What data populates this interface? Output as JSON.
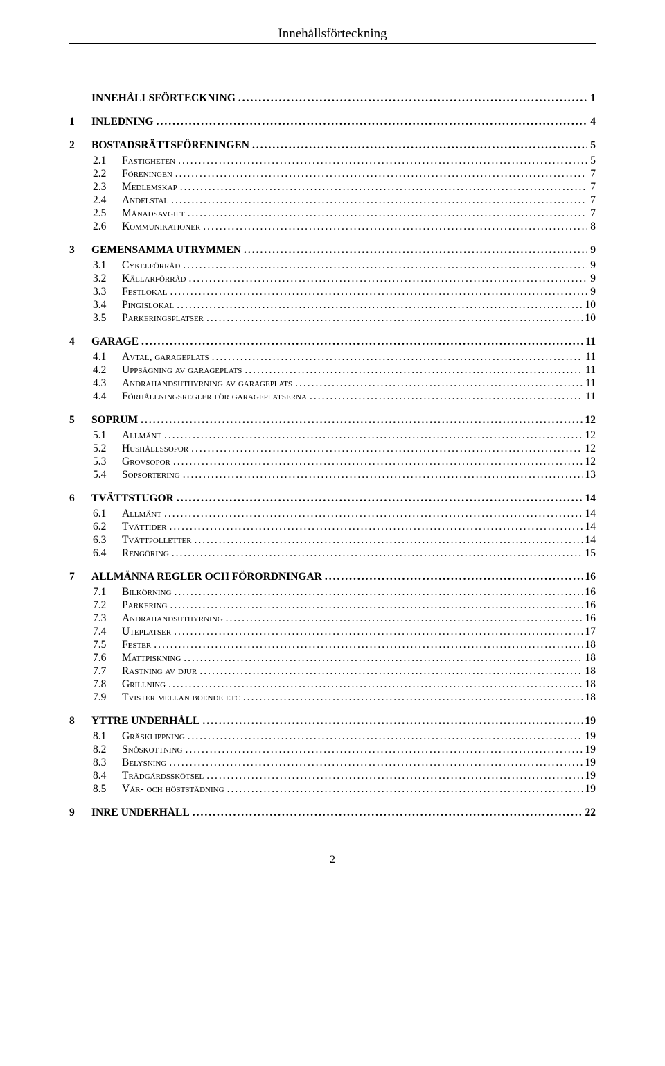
{
  "header": "Innehållsförteckning",
  "page_number": "2",
  "toc": [
    {
      "level": 0,
      "num": "",
      "label": "INNEHÅLLSFÖRTECKNING",
      "page": "1",
      "sc": false
    },
    {
      "level": 0,
      "num": "1",
      "label": "INLEDNING",
      "page": "4",
      "sc": false
    },
    {
      "level": 0,
      "num": "2",
      "label": "BOSTADSRÄTTSFÖRENINGEN",
      "page": "5",
      "sc": false
    },
    {
      "level": 1,
      "num": "2.1",
      "label": "Fastigheten",
      "page": "5",
      "sc": true
    },
    {
      "level": 1,
      "num": "2.2",
      "label": "Föreningen",
      "page": "7",
      "sc": true
    },
    {
      "level": 1,
      "num": "2.3",
      "label": "Medlemskap",
      "page": "7",
      "sc": true
    },
    {
      "level": 1,
      "num": "2.4",
      "label": "Andelstal",
      "page": "7",
      "sc": true
    },
    {
      "level": 1,
      "num": "2.5",
      "label": "Månadsavgift",
      "page": "7",
      "sc": true
    },
    {
      "level": 1,
      "num": "2.6",
      "label": "Kommunikationer",
      "page": "8",
      "sc": true
    },
    {
      "level": 0,
      "num": "3",
      "label": "GEMENSAMMA UTRYMMEN",
      "page": "9",
      "sc": false
    },
    {
      "level": 1,
      "num": "3.1",
      "label": "Cykelförråd",
      "page": "9",
      "sc": true
    },
    {
      "level": 1,
      "num": "3.2",
      "label": "Källarförråd",
      "page": "9",
      "sc": true
    },
    {
      "level": 1,
      "num": "3.3",
      "label": "Festlokal",
      "page": "9",
      "sc": true
    },
    {
      "level": 1,
      "num": "3.4",
      "label": "Pingislokal",
      "page": "10",
      "sc": true
    },
    {
      "level": 1,
      "num": "3.5",
      "label": "Parkeringsplatser",
      "page": "10",
      "sc": true
    },
    {
      "level": 0,
      "num": "4",
      "label": "GARAGE",
      "page": "11",
      "sc": false
    },
    {
      "level": 1,
      "num": "4.1",
      "label": "Avtal, garageplats",
      "page": "11",
      "sc": true
    },
    {
      "level": 1,
      "num": "4.2",
      "label": "Uppsägning av garageplats",
      "page": "11",
      "sc": true
    },
    {
      "level": 1,
      "num": "4.3",
      "label": "Andrahandsuthyrning av garageplats",
      "page": "11",
      "sc": true
    },
    {
      "level": 1,
      "num": "4.4",
      "label": "Förhållningsregler för garageplatserna",
      "page": "11",
      "sc": true
    },
    {
      "level": 0,
      "num": "5",
      "label": "SOPRUM",
      "page": "12",
      "sc": false
    },
    {
      "level": 1,
      "num": "5.1",
      "label": "Allmänt",
      "page": "12",
      "sc": true
    },
    {
      "level": 1,
      "num": "5.2",
      "label": "Hushållssopor",
      "page": "12",
      "sc": true
    },
    {
      "level": 1,
      "num": "5.3",
      "label": "Grovsopor",
      "page": "12",
      "sc": true
    },
    {
      "level": 1,
      "num": "5.4",
      "label": "Sopsortering",
      "page": "13",
      "sc": true
    },
    {
      "level": 0,
      "num": "6",
      "label": "TVÄTTSTUGOR",
      "page": "14",
      "sc": false
    },
    {
      "level": 1,
      "num": "6.1",
      "label": "Allmänt",
      "page": "14",
      "sc": true
    },
    {
      "level": 1,
      "num": "6.2",
      "label": "Tvättider",
      "page": "14",
      "sc": true
    },
    {
      "level": 1,
      "num": "6.3",
      "label": "Tvättpolletter",
      "page": "14",
      "sc": true
    },
    {
      "level": 1,
      "num": "6.4",
      "label": "Rengöring",
      "page": "15",
      "sc": true
    },
    {
      "level": 0,
      "num": "7",
      "label": "ALLMÄNNA REGLER OCH FÖRORDNINGAR",
      "page": "16",
      "sc": false
    },
    {
      "level": 1,
      "num": "7.1",
      "label": "Bilkörning",
      "page": "16",
      "sc": true
    },
    {
      "level": 1,
      "num": "7.2",
      "label": "Parkering",
      "page": "16",
      "sc": true
    },
    {
      "level": 1,
      "num": "7.3",
      "label": "Andrahandsuthyrning",
      "page": "16",
      "sc": true
    },
    {
      "level": 1,
      "num": "7.4",
      "label": "Uteplatser",
      "page": "17",
      "sc": true
    },
    {
      "level": 1,
      "num": "7.5",
      "label": "Fester",
      "page": "18",
      "sc": true
    },
    {
      "level": 1,
      "num": "7.6",
      "label": "Mattpiskning",
      "page": "18",
      "sc": true
    },
    {
      "level": 1,
      "num": "7.7",
      "label": "Rastning av djur",
      "page": "18",
      "sc": true
    },
    {
      "level": 1,
      "num": "7.8",
      "label": "Grillning",
      "page": "18",
      "sc": true
    },
    {
      "level": 1,
      "num": "7.9",
      "label": "Tvister mellan boende etc",
      "page": "18",
      "sc": true
    },
    {
      "level": 0,
      "num": "8",
      "label": "YTTRE UNDERHÅLL",
      "page": "19",
      "sc": false
    },
    {
      "level": 1,
      "num": "8.1",
      "label": "Gräsklippning",
      "page": "19",
      "sc": true
    },
    {
      "level": 1,
      "num": "8.2",
      "label": "Snöskottning",
      "page": "19",
      "sc": true
    },
    {
      "level": 1,
      "num": "8.3",
      "label": "Belysning",
      "page": "19",
      "sc": true
    },
    {
      "level": 1,
      "num": "8.4",
      "label": "Trädgårdsskötsel",
      "page": "19",
      "sc": true
    },
    {
      "level": 1,
      "num": "8.5",
      "label": "Vår- och höststädning",
      "page": "19",
      "sc": true
    },
    {
      "level": 0,
      "num": "9",
      "label": "INRE UNDERHÅLL",
      "page": "22",
      "sc": false
    }
  ]
}
